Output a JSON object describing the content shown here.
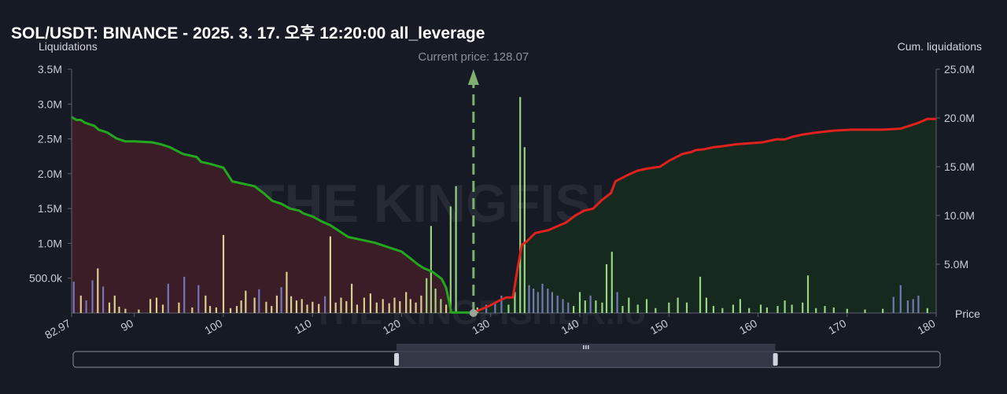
{
  "title": "SOL/USDT: BINANCE - 2025. 3. 17. 오후 12:20:00 all_leverage",
  "left_axis_title": "Liquidations",
  "right_axis_title": "Cum. liquidations",
  "x_axis_title": "Price",
  "current_price_label": "Current price: 128.07",
  "watermark": "THE KINGFISHER.io",
  "colors": {
    "background": "#161a25",
    "short_cum_line": "#22a71f",
    "long_cum_line": "#e0211e",
    "short_fill": "#3a1d26",
    "long_fill": "#15291f",
    "bar_yellow": "#e8e49a",
    "bar_green": "#a8e58e",
    "bar_purple": "#7f80c8",
    "current_price": "#7fae6e"
  },
  "chart_data": {
    "type": "bar",
    "xlim": [
      82.97,
      180
    ],
    "x_ticks": [
      "82.97",
      "90",
      "100",
      "110",
      "120",
      "130",
      "140",
      "150",
      "160",
      "170",
      "180"
    ],
    "left_ylim": [
      0,
      3500000
    ],
    "left_ticks": [
      "500.0k",
      "1.0M",
      "1.5M",
      "2.0M",
      "2.5M",
      "3.0M",
      "3.5M"
    ],
    "right_ylim": [
      0,
      25000000
    ],
    "right_ticks": [
      "5.0M",
      "10.0M",
      "15.0M",
      "20.0M",
      "25.0M"
    ],
    "current_price": 128.07,
    "bars": [
      {
        "x": 83.2,
        "y": 450000,
        "c": "purple"
      },
      {
        "x": 84.0,
        "y": 250000,
        "c": "yellow"
      },
      {
        "x": 84.6,
        "y": 180000,
        "c": "purple"
      },
      {
        "x": 85.3,
        "y": 470000,
        "c": "purple"
      },
      {
        "x": 85.9,
        "y": 640000,
        "c": "yellow"
      },
      {
        "x": 86.5,
        "y": 380000,
        "c": "purple"
      },
      {
        "x": 87.2,
        "y": 150000,
        "c": "yellow"
      },
      {
        "x": 87.8,
        "y": 250000,
        "c": "yellow"
      },
      {
        "x": 88.3,
        "y": 90000,
        "c": "yellow"
      },
      {
        "x": 89.0,
        "y": 60000,
        "c": "yellow"
      },
      {
        "x": 90.5,
        "y": 50000,
        "c": "yellow"
      },
      {
        "x": 91.8,
        "y": 200000,
        "c": "yellow"
      },
      {
        "x": 92.5,
        "y": 220000,
        "c": "yellow"
      },
      {
        "x": 93.2,
        "y": 120000,
        "c": "yellow"
      },
      {
        "x": 93.8,
        "y": 420000,
        "c": "purple"
      },
      {
        "x": 95.0,
        "y": 150000,
        "c": "yellow"
      },
      {
        "x": 95.6,
        "y": 520000,
        "c": "purple"
      },
      {
        "x": 96.5,
        "y": 80000,
        "c": "yellow"
      },
      {
        "x": 97.2,
        "y": 400000,
        "c": "purple"
      },
      {
        "x": 98.0,
        "y": 250000,
        "c": "yellow"
      },
      {
        "x": 98.5,
        "y": 100000,
        "c": "yellow"
      },
      {
        "x": 99.2,
        "y": 80000,
        "c": "yellow"
      },
      {
        "x": 100.0,
        "y": 1120000,
        "c": "yellow"
      },
      {
        "x": 100.8,
        "y": 70000,
        "c": "yellow"
      },
      {
        "x": 101.5,
        "y": 100000,
        "c": "yellow"
      },
      {
        "x": 102.0,
        "y": 180000,
        "c": "yellow"
      },
      {
        "x": 102.5,
        "y": 320000,
        "c": "yellow"
      },
      {
        "x": 103.5,
        "y": 220000,
        "c": "yellow"
      },
      {
        "x": 104.0,
        "y": 340000,
        "c": "purple"
      },
      {
        "x": 104.8,
        "y": 160000,
        "c": "yellow"
      },
      {
        "x": 105.4,
        "y": 100000,
        "c": "yellow"
      },
      {
        "x": 106.0,
        "y": 250000,
        "c": "yellow"
      },
      {
        "x": 106.5,
        "y": 370000,
        "c": "purple"
      },
      {
        "x": 107.1,
        "y": 590000,
        "c": "yellow"
      },
      {
        "x": 107.6,
        "y": 240000,
        "c": "yellow"
      },
      {
        "x": 108.2,
        "y": 180000,
        "c": "yellow"
      },
      {
        "x": 108.8,
        "y": 200000,
        "c": "yellow"
      },
      {
        "x": 109.4,
        "y": 120000,
        "c": "yellow"
      },
      {
        "x": 110.0,
        "y": 160000,
        "c": "yellow"
      },
      {
        "x": 110.7,
        "y": 130000,
        "c": "yellow"
      },
      {
        "x": 111.4,
        "y": 240000,
        "c": "purple"
      },
      {
        "x": 112.0,
        "y": 1100000,
        "c": "yellow"
      },
      {
        "x": 112.6,
        "y": 150000,
        "c": "yellow"
      },
      {
        "x": 113.2,
        "y": 220000,
        "c": "yellow"
      },
      {
        "x": 113.8,
        "y": 170000,
        "c": "yellow"
      },
      {
        "x": 114.4,
        "y": 420000,
        "c": "yellow"
      },
      {
        "x": 115.0,
        "y": 120000,
        "c": "yellow"
      },
      {
        "x": 115.8,
        "y": 220000,
        "c": "yellow"
      },
      {
        "x": 116.5,
        "y": 280000,
        "c": "yellow"
      },
      {
        "x": 117.2,
        "y": 150000,
        "c": "yellow"
      },
      {
        "x": 117.9,
        "y": 200000,
        "c": "yellow"
      },
      {
        "x": 118.6,
        "y": 140000,
        "c": "yellow"
      },
      {
        "x": 119.2,
        "y": 220000,
        "c": "yellow"
      },
      {
        "x": 119.8,
        "y": 170000,
        "c": "yellow"
      },
      {
        "x": 120.5,
        "y": 300000,
        "c": "yellow"
      },
      {
        "x": 121.0,
        "y": 200000,
        "c": "yellow"
      },
      {
        "x": 121.6,
        "y": 150000,
        "c": "yellow"
      },
      {
        "x": 122.2,
        "y": 250000,
        "c": "yellow"
      },
      {
        "x": 122.8,
        "y": 500000,
        "c": "green"
      },
      {
        "x": 123.3,
        "y": 1250000,
        "c": "green"
      },
      {
        "x": 123.8,
        "y": 350000,
        "c": "green"
      },
      {
        "x": 124.4,
        "y": 200000,
        "c": "green"
      },
      {
        "x": 125.0,
        "y": 120000,
        "c": "yellow"
      },
      {
        "x": 125.5,
        "y": 1530000,
        "c": "green"
      },
      {
        "x": 126.1,
        "y": 1820000,
        "c": "green"
      },
      {
        "x": 128.5,
        "y": 80000,
        "c": "green"
      },
      {
        "x": 129.5,
        "y": 120000,
        "c": "purple"
      },
      {
        "x": 130.5,
        "y": 150000,
        "c": "purple"
      },
      {
        "x": 131.2,
        "y": 250000,
        "c": "purple"
      },
      {
        "x": 132.0,
        "y": 120000,
        "c": "green"
      },
      {
        "x": 132.7,
        "y": 300000,
        "c": "green"
      },
      {
        "x": 133.3,
        "y": 3100000,
        "c": "green"
      },
      {
        "x": 133.8,
        "y": 2380000,
        "c": "green"
      },
      {
        "x": 134.3,
        "y": 400000,
        "c": "purple"
      },
      {
        "x": 134.8,
        "y": 350000,
        "c": "purple"
      },
      {
        "x": 135.3,
        "y": 300000,
        "c": "purple"
      },
      {
        "x": 135.8,
        "y": 420000,
        "c": "purple"
      },
      {
        "x": 136.4,
        "y": 350000,
        "c": "purple"
      },
      {
        "x": 136.9,
        "y": 300000,
        "c": "purple"
      },
      {
        "x": 137.5,
        "y": 250000,
        "c": "purple"
      },
      {
        "x": 138.1,
        "y": 200000,
        "c": "purple"
      },
      {
        "x": 138.7,
        "y": 150000,
        "c": "purple"
      },
      {
        "x": 139.3,
        "y": 100000,
        "c": "green"
      },
      {
        "x": 140.0,
        "y": 300000,
        "c": "green"
      },
      {
        "x": 140.6,
        "y": 180000,
        "c": "green"
      },
      {
        "x": 141.2,
        "y": 250000,
        "c": "purple"
      },
      {
        "x": 141.8,
        "y": 180000,
        "c": "green"
      },
      {
        "x": 142.5,
        "y": 150000,
        "c": "green"
      },
      {
        "x": 143.0,
        "y": 700000,
        "c": "green"
      },
      {
        "x": 143.6,
        "y": 880000,
        "c": "green"
      },
      {
        "x": 144.2,
        "y": 300000,
        "c": "purple"
      },
      {
        "x": 144.8,
        "y": 100000,
        "c": "green"
      },
      {
        "x": 145.5,
        "y": 220000,
        "c": "green"
      },
      {
        "x": 146.5,
        "y": 120000,
        "c": "green"
      },
      {
        "x": 147.5,
        "y": 200000,
        "c": "green"
      },
      {
        "x": 148.5,
        "y": 70000,
        "c": "green"
      },
      {
        "x": 150.0,
        "y": 150000,
        "c": "green"
      },
      {
        "x": 151.0,
        "y": 220000,
        "c": "green"
      },
      {
        "x": 152.0,
        "y": 150000,
        "c": "green"
      },
      {
        "x": 153.5,
        "y": 520000,
        "c": "green"
      },
      {
        "x": 154.2,
        "y": 220000,
        "c": "green"
      },
      {
        "x": 155.0,
        "y": 100000,
        "c": "green"
      },
      {
        "x": 156.0,
        "y": 70000,
        "c": "green"
      },
      {
        "x": 157.2,
        "y": 120000,
        "c": "green"
      },
      {
        "x": 158.0,
        "y": 200000,
        "c": "green"
      },
      {
        "x": 159.0,
        "y": 70000,
        "c": "green"
      },
      {
        "x": 160.3,
        "y": 120000,
        "c": "green"
      },
      {
        "x": 161.0,
        "y": 80000,
        "c": "green"
      },
      {
        "x": 162.2,
        "y": 100000,
        "c": "green"
      },
      {
        "x": 163.0,
        "y": 180000,
        "c": "green"
      },
      {
        "x": 163.8,
        "y": 120000,
        "c": "green"
      },
      {
        "x": 165.0,
        "y": 150000,
        "c": "green"
      },
      {
        "x": 165.6,
        "y": 540000,
        "c": "green"
      },
      {
        "x": 166.5,
        "y": 70000,
        "c": "green"
      },
      {
        "x": 167.5,
        "y": 100000,
        "c": "green"
      },
      {
        "x": 168.5,
        "y": 80000,
        "c": "green"
      },
      {
        "x": 170.0,
        "y": 60000,
        "c": "green"
      },
      {
        "x": 172.0,
        "y": 50000,
        "c": "green"
      },
      {
        "x": 174.0,
        "y": 60000,
        "c": "green"
      },
      {
        "x": 175.2,
        "y": 230000,
        "c": "purple"
      },
      {
        "x": 176.0,
        "y": 400000,
        "c": "purple"
      },
      {
        "x": 176.8,
        "y": 180000,
        "c": "purple"
      },
      {
        "x": 177.4,
        "y": 200000,
        "c": "purple"
      },
      {
        "x": 178.0,
        "y": 250000,
        "c": "purple"
      },
      {
        "x": 179.0,
        "y": 70000,
        "c": "green"
      }
    ],
    "short_cum": [
      [
        82.97,
        20.1
      ],
      [
        83.5,
        19.8
      ],
      [
        84.0,
        19.8
      ],
      [
        84.5,
        19.5
      ],
      [
        85.5,
        19.2
      ],
      [
        86.0,
        18.8
      ],
      [
        87.0,
        18.5
      ],
      [
        88.0,
        17.9
      ],
      [
        89.0,
        17.6
      ],
      [
        90.0,
        17.6
      ],
      [
        92.0,
        17.5
      ],
      [
        93.0,
        17.3
      ],
      [
        94.0,
        17.0
      ],
      [
        95.5,
        16.3
      ],
      [
        96.0,
        16.2
      ],
      [
        97.0,
        16.0
      ],
      [
        97.5,
        15.5
      ],
      [
        98.5,
        15.3
      ],
      [
        100.0,
        14.9
      ],
      [
        101.0,
        13.5
      ],
      [
        102.5,
        13.2
      ],
      [
        103.5,
        13.0
      ],
      [
        104.5,
        12.3
      ],
      [
        105.5,
        11.5
      ],
      [
        106.5,
        11.2
      ],
      [
        107.5,
        10.7
      ],
      [
        108.5,
        10.5
      ],
      [
        109.0,
        10.2
      ],
      [
        110.0,
        9.9
      ],
      [
        111.0,
        9.4
      ],
      [
        112.0,
        9.0
      ],
      [
        113.0,
        8.4
      ],
      [
        114.0,
        7.8
      ],
      [
        115.0,
        7.6
      ],
      [
        116.0,
        7.4
      ],
      [
        117.0,
        7.2
      ],
      [
        118.0,
        6.9
      ],
      [
        119.0,
        6.6
      ],
      [
        120.0,
        6.3
      ],
      [
        121.0,
        5.6
      ],
      [
        121.8,
        5.0
      ],
      [
        122.5,
        4.6
      ],
      [
        123.5,
        4.2
      ],
      [
        124.5,
        3.5
      ],
      [
        125.0,
        2.6
      ],
      [
        125.6,
        0.05
      ],
      [
        128.07,
        0.05
      ]
    ],
    "long_cum": [
      [
        128.07,
        0.05
      ],
      [
        129.0,
        0.4
      ],
      [
        130.0,
        0.8
      ],
      [
        131.0,
        1.3
      ],
      [
        131.8,
        1.6
      ],
      [
        132.5,
        1.6
      ],
      [
        133.0,
        4.5
      ],
      [
        133.5,
        7.0
      ],
      [
        134.0,
        7.3
      ],
      [
        135.0,
        8.2
      ],
      [
        136.5,
        8.5
      ],
      [
        137.5,
        8.9
      ],
      [
        138.5,
        9.3
      ],
      [
        139.5,
        10.0
      ],
      [
        140.5,
        10.5
      ],
      [
        141.5,
        10.7
      ],
      [
        142.5,
        11.6
      ],
      [
        143.5,
        12.3
      ],
      [
        144.0,
        13.5
      ],
      [
        145.5,
        14.2
      ],
      [
        146.5,
        14.6
      ],
      [
        147.5,
        14.8
      ],
      [
        149.0,
        15.0
      ],
      [
        150.0,
        15.6
      ],
      [
        151.5,
        16.3
      ],
      [
        152.5,
        16.5
      ],
      [
        153.0,
        16.7
      ],
      [
        154.0,
        16.8
      ],
      [
        155.0,
        17.0
      ],
      [
        156.0,
        17.1
      ],
      [
        157.5,
        17.3
      ],
      [
        159.0,
        17.4
      ],
      [
        160.5,
        17.5
      ],
      [
        162.0,
        17.8
      ],
      [
        163.0,
        17.8
      ],
      [
        164.0,
        18.1
      ],
      [
        165.0,
        18.3
      ],
      [
        166.5,
        18.5
      ],
      [
        168.5,
        18.7
      ],
      [
        170.5,
        18.8
      ],
      [
        174.0,
        18.8
      ],
      [
        176.0,
        18.9
      ],
      [
        177.0,
        19.2
      ],
      [
        178.0,
        19.5
      ],
      [
        179.0,
        19.9
      ],
      [
        180.0,
        19.9
      ]
    ]
  },
  "range_slider": {
    "from": 0.373,
    "to": 0.81
  }
}
